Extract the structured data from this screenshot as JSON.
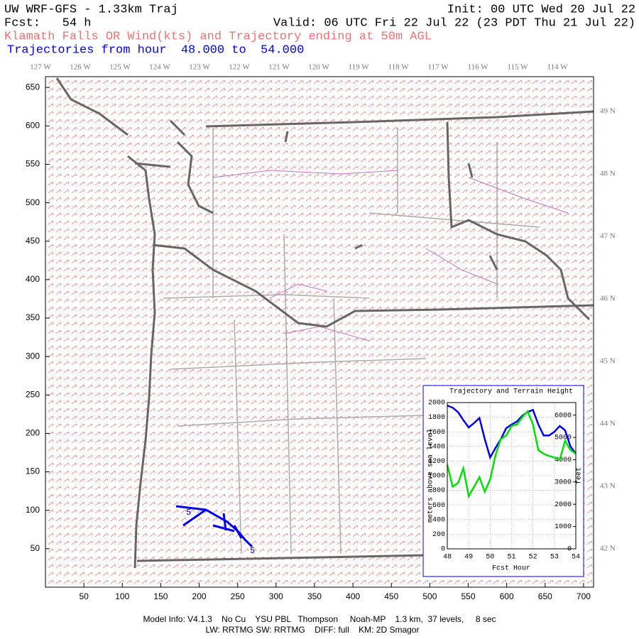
{
  "header": {
    "title": "UW WRF-GFS - 1.33km Traj",
    "init": "Init: 00 UTC Wed 20 Jul 22",
    "fcst": "Fcst:   54 h",
    "valid": "Valid: 06 UTC Fri 22 Jul 22 (23 PDT Thu 21 Jul 22)",
    "subtitle": "Klamath Falls OR Wind(kts) and Trajectory ending at 50m AGL",
    "trajectories": "Trajectories from hour  48.000 to  54.000"
  },
  "map": {
    "xlim": [
      0,
      713
    ],
    "ylim": [
      0,
      664
    ],
    "xticks": [
      50,
      100,
      150,
      200,
      250,
      300,
      350,
      400,
      450,
      500,
      550,
      600,
      650,
      700
    ],
    "yticks": [
      50,
      100,
      150,
      200,
      250,
      300,
      350,
      400,
      450,
      500,
      550,
      600,
      650
    ],
    "lon_labels": [
      "127 W",
      "126 W",
      "125 W",
      "124 W",
      "123 W",
      "122 W",
      "121 W",
      "120 W",
      "119 W",
      "118 W",
      "117 W",
      "116 W",
      "115 W",
      "114 W"
    ],
    "lat_labels": [
      "49 N",
      "48 N",
      "47 N",
      "46 N",
      "45 N",
      "44 N",
      "43 N",
      "42 N"
    ],
    "trajectory_labels": [
      "5",
      "5"
    ]
  },
  "chart_data": {
    "type": "line",
    "title": "Trajectory and Terrain Height",
    "x_label": "Fcst Hour",
    "y_label": "meters above sea level",
    "y2_label": "feet",
    "x": [
      48,
      48.25,
      48.5,
      48.75,
      49,
      49.25,
      49.5,
      49.75,
      50,
      50.25,
      50.5,
      50.75,
      51,
      51.25,
      51.5,
      51.75,
      52,
      52.25,
      52.5,
      52.75,
      53,
      53.25,
      53.5,
      53.75,
      54
    ],
    "series": [
      {
        "color": "#0000ee",
        "values": [
          1960,
          1930,
          1870,
          1760,
          1660,
          1720,
          1790,
          1500,
          1250,
          1380,
          1500,
          1650,
          1700,
          1740,
          1820,
          1870,
          1900,
          1700,
          1550,
          1550,
          1600,
          1680,
          1620,
          1400,
          1300
        ]
      },
      {
        "color": "#00e000",
        "values": [
          1150,
          850,
          900,
          1100,
          720,
          850,
          980,
          780,
          950,
          1280,
          1500,
          1550,
          1680,
          1700,
          1800,
          1880,
          1700,
          1350,
          1300,
          1270,
          1250,
          1220,
          1480,
          1350,
          1300
        ]
      }
    ],
    "xlim": [
      48,
      54
    ],
    "xticks": [
      48,
      49,
      50,
      51,
      52,
      53,
      54
    ],
    "ylim": [
      0,
      2000
    ],
    "yticks": [
      0,
      200,
      400,
      600,
      800,
      1000,
      1200,
      1400,
      1600,
      1800,
      2000
    ],
    "y2lim": [
      0,
      6562
    ],
    "y2ticks": [
      0,
      1000,
      2000,
      3000,
      4000,
      5000,
      6000
    ],
    "grid": true
  },
  "footer": {
    "line1": "Model Info: V4.1.3    No Cu    YSU PBL   Thompson     Noah-MP    1.3 km,  37 levels,     8 sec",
    "line2": "LW: RRTMG SW: RRTMG    DIFF: full    KM: 2D Smagor"
  }
}
